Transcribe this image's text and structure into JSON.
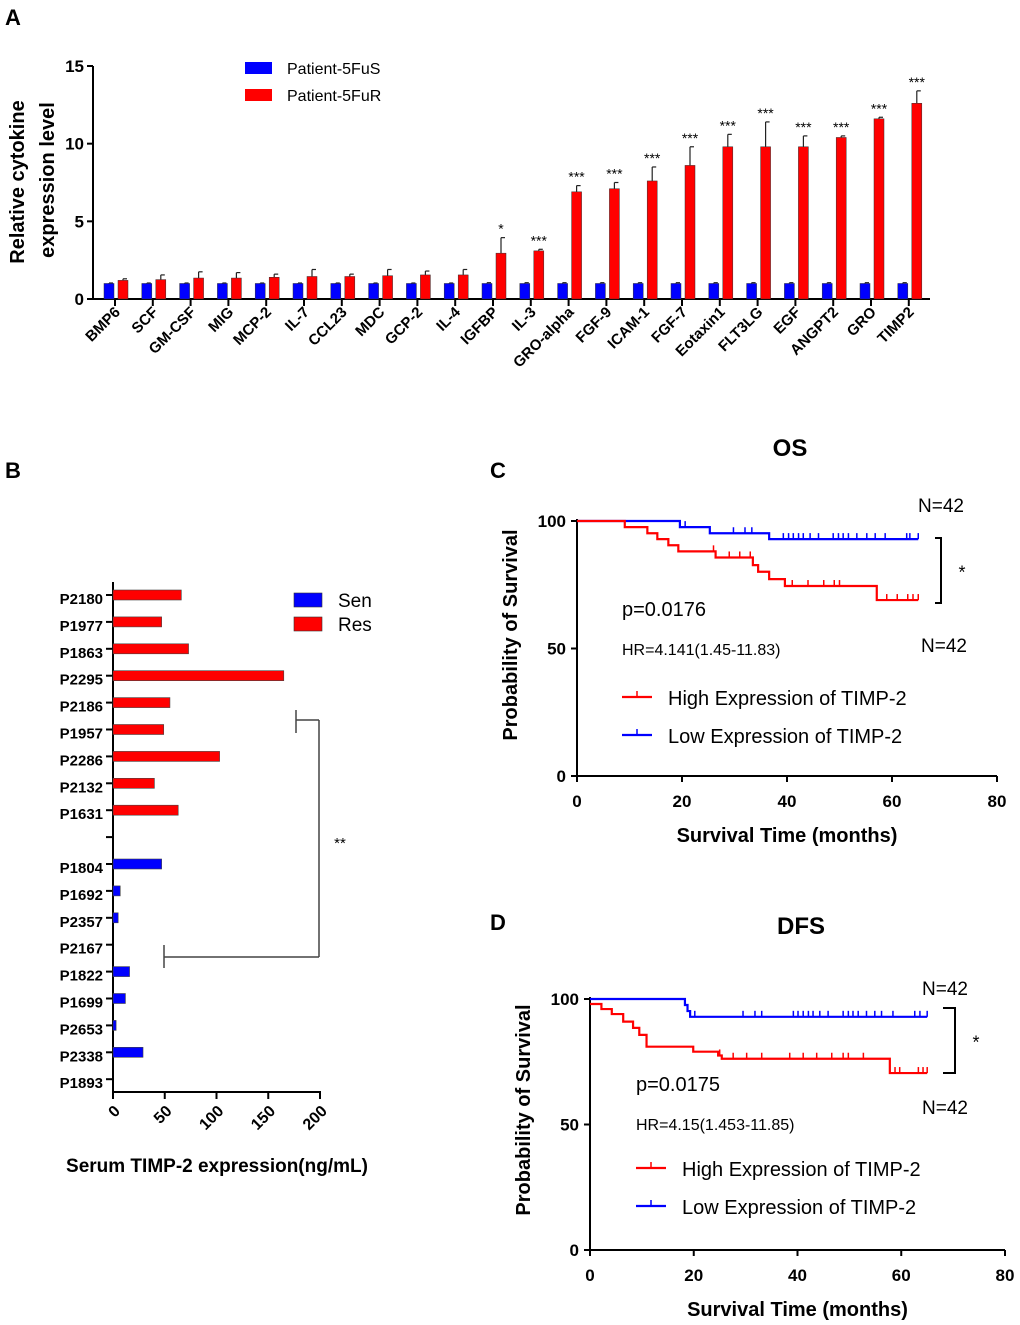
{
  "panel_labels": [
    "A",
    "B",
    "C",
    "D"
  ],
  "colors": {
    "sensitive": "#0000ff",
    "resistant": "#ff0000",
    "axis": "#000000"
  },
  "chart_data": [
    {
      "panel": "A",
      "type": "bar",
      "ylabel": [
        "Relative cytokine",
        "expression level"
      ],
      "ylim": [
        0,
        15
      ],
      "yticks": [
        "0",
        "5",
        "10",
        "15"
      ],
      "legend_position": "top",
      "categories": [
        "BMP6",
        "SCF",
        "GM-CSF",
        "MIG",
        "MCP-2",
        "IL-7",
        "CCL23",
        "MDC",
        "GCP-2",
        "IL-4",
        "IGFBP",
        "IL-3",
        "GRO-alpha",
        "FGF-9",
        "ICAM-1",
        "FGF-7",
        "Eotaxin1",
        "FLT3LG",
        "EGF",
        "ANGPT2",
        "GRO",
        "TIMP2"
      ],
      "series": [
        {
          "name": "Patient-5FuS",
          "color": "#0000ff",
          "values": [
            1,
            1,
            1,
            1,
            1,
            1,
            1,
            1,
            1,
            1,
            1,
            1,
            1,
            1,
            1,
            1,
            1,
            1,
            1,
            1,
            1,
            1
          ],
          "errors": [
            0.03,
            0.03,
            0.03,
            0.03,
            0.03,
            0.03,
            0.03,
            0.03,
            0.03,
            0.03,
            0.05,
            0.05,
            0.05,
            0.05,
            0.05,
            0.05,
            0.05,
            0.05,
            0.05,
            0.05,
            0.05,
            0.05
          ]
        },
        {
          "name": "Patient-5FuR",
          "color": "#ff0000",
          "values": [
            1.2,
            1.25,
            1.35,
            1.35,
            1.4,
            1.45,
            1.45,
            1.5,
            1.55,
            1.55,
            2.95,
            3.1,
            6.9,
            7.1,
            7.6,
            8.6,
            9.8,
            9.8,
            9.8,
            10.4,
            11.6,
            12.6
          ],
          "errors": [
            0.1,
            0.3,
            0.4,
            0.35,
            0.2,
            0.45,
            0.15,
            0.4,
            0.25,
            0.35,
            1.0,
            0.1,
            0.4,
            0.4,
            0.9,
            1.2,
            0.8,
            1.6,
            0.7,
            0.1,
            0.1,
            0.8
          ]
        }
      ],
      "significance": [
        "",
        "",
        "",
        "",
        "",
        "",
        "",
        "",
        "",
        "",
        "*",
        "***",
        "***",
        "***",
        "***",
        "***",
        "***",
        "***",
        "***",
        "***",
        "***",
        "***"
      ]
    },
    {
      "panel": "B",
      "type": "bar",
      "orientation": "horizontal",
      "xlabel": "Serum TIMP-2 expression(ng/mL)",
      "xlim": [
        0,
        200
      ],
      "xticks": [
        "0",
        "50",
        "100",
        "150",
        "200"
      ],
      "legend_position": "top-right",
      "legend": [
        {
          "name": "Sen",
          "color": "#0000ff"
        },
        {
          "name": "Res",
          "color": "#ff0000"
        }
      ],
      "groups": [
        {
          "name": "Res",
          "categories": [
            "P2180",
            "P1977",
            "P1863",
            "P2295",
            "P2186",
            "P1957",
            "P2286",
            "P2132",
            "P1631"
          ],
          "values": [
            66,
            47,
            73,
            165,
            55,
            49,
            103,
            40,
            63
          ]
        },
        {
          "name": "Sen",
          "categories": [
            "P1804",
            "P1692",
            "P2357",
            "P2167",
            "P1822",
            "P1699",
            "P2653",
            "P2338",
            "P1893"
          ],
          "values": [
            47,
            7,
            5,
            0,
            16,
            12,
            3,
            29,
            0
          ]
        }
      ],
      "significance": "**"
    },
    {
      "panel": "C",
      "type": "line",
      "subtype": "kaplan-meier",
      "title": "OS",
      "xlabel": "Survival Time (months)",
      "ylabel": "Probability of Survival",
      "xlim": [
        0,
        80
      ],
      "ylim": [
        0,
        100
      ],
      "xticks": [
        "0",
        "20",
        "40",
        "60",
        "80"
      ],
      "yticks": [
        "0",
        "50",
        "100"
      ],
      "p_value": "p=0.0176",
      "hr": "HR=4.141(1.45-11.83)",
      "n_top": "N=42",
      "n_bottom": "N=42",
      "significance": "*",
      "series": [
        {
          "name": "High Expression of TIMP-2",
          "color": "#ff0000",
          "end": 65,
          "steps": [
            [
              0,
              100
            ],
            [
              9.1,
              97.6
            ],
            [
              13.4,
              95.2
            ],
            [
              15.3,
              92.9
            ],
            [
              17.4,
              90.5
            ],
            [
              19.3,
              88.1
            ],
            [
              26.4,
              85.7
            ],
            [
              33.5,
              82.7
            ],
            [
              34.5,
              80.1
            ],
            [
              36.6,
              77.2
            ],
            [
              39.6,
              74.5
            ],
            [
              57.1,
              69
            ]
          ],
          "censored": [
            26,
            29,
            31,
            33,
            41,
            44,
            47,
            49,
            50,
            59,
            61,
            63,
            64,
            65
          ]
        },
        {
          "name": "Low Expression of  TIMP-2",
          "color": "#0000ff",
          "end": 65,
          "steps": [
            [
              0,
              100
            ],
            [
              19.6,
              97.6
            ],
            [
              25.3,
              95.2
            ],
            [
              36.6,
              92.9
            ]
          ],
          "censored": [
            20.6,
            29.8,
            32,
            33.3,
            39.3,
            40.3,
            41.2,
            42.2,
            43.1,
            44.4,
            46,
            48.8,
            49.8,
            50.7,
            51.7,
            53.3,
            55.2,
            56.8,
            58.7,
            62.8,
            63.4,
            65
          ]
        }
      ]
    },
    {
      "panel": "D",
      "type": "line",
      "subtype": "kaplan-meier",
      "title": "DFS",
      "xlabel": "Survival Time (months)",
      "ylabel": "Probability of Survival",
      "xlim": [
        0,
        80
      ],
      "ylim": [
        0,
        100
      ],
      "xticks": [
        "0",
        "20",
        "40",
        "60",
        "80"
      ],
      "yticks": [
        "0",
        "50",
        "100"
      ],
      "p_value": "p=0.0175",
      "hr": "HR=4.15(1.453-11.85)",
      "n_top": "N=42",
      "n_bottom": "N=42",
      "significance": "*",
      "series": [
        {
          "name": "High Expression of TIMP-2",
          "color": "#ff0000",
          "end": 65,
          "steps": [
            [
              0,
              98
            ],
            [
              2.2,
              96
            ],
            [
              4.2,
              94
            ],
            [
              6.4,
              91
            ],
            [
              8.3,
              88.5
            ],
            [
              9.5,
              85.7
            ],
            [
              10.9,
              81
            ],
            [
              19.9,
              79
            ],
            [
              24.7,
              77.5
            ],
            [
              25.4,
              76.2
            ],
            [
              57.8,
              70.5
            ]
          ],
          "censored": [
            25,
            27.6,
            30.2,
            33.1,
            38.5,
            41.1,
            43.7,
            46.6,
            48.8,
            49.8,
            52.7,
            58.8,
            59.7,
            63.3,
            64.2,
            65
          ]
        },
        {
          "name": "Low Expression of TIMP-2",
          "color": "#0000ff",
          "end": 65,
          "steps": [
            [
              0,
              100
            ],
            [
              18.3,
              97.6
            ],
            [
              18.8,
              95.2
            ],
            [
              19.3,
              92.9
            ]
          ],
          "censored": [
            20.2,
            29.5,
            31.8,
            33.1,
            39.2,
            40.1,
            41.1,
            42.1,
            43,
            44.3,
            45.9,
            48.8,
            49.8,
            50.7,
            51.7,
            53.3,
            54.9,
            56.2,
            58.4,
            62.6,
            63.6,
            65
          ]
        }
      ]
    }
  ]
}
